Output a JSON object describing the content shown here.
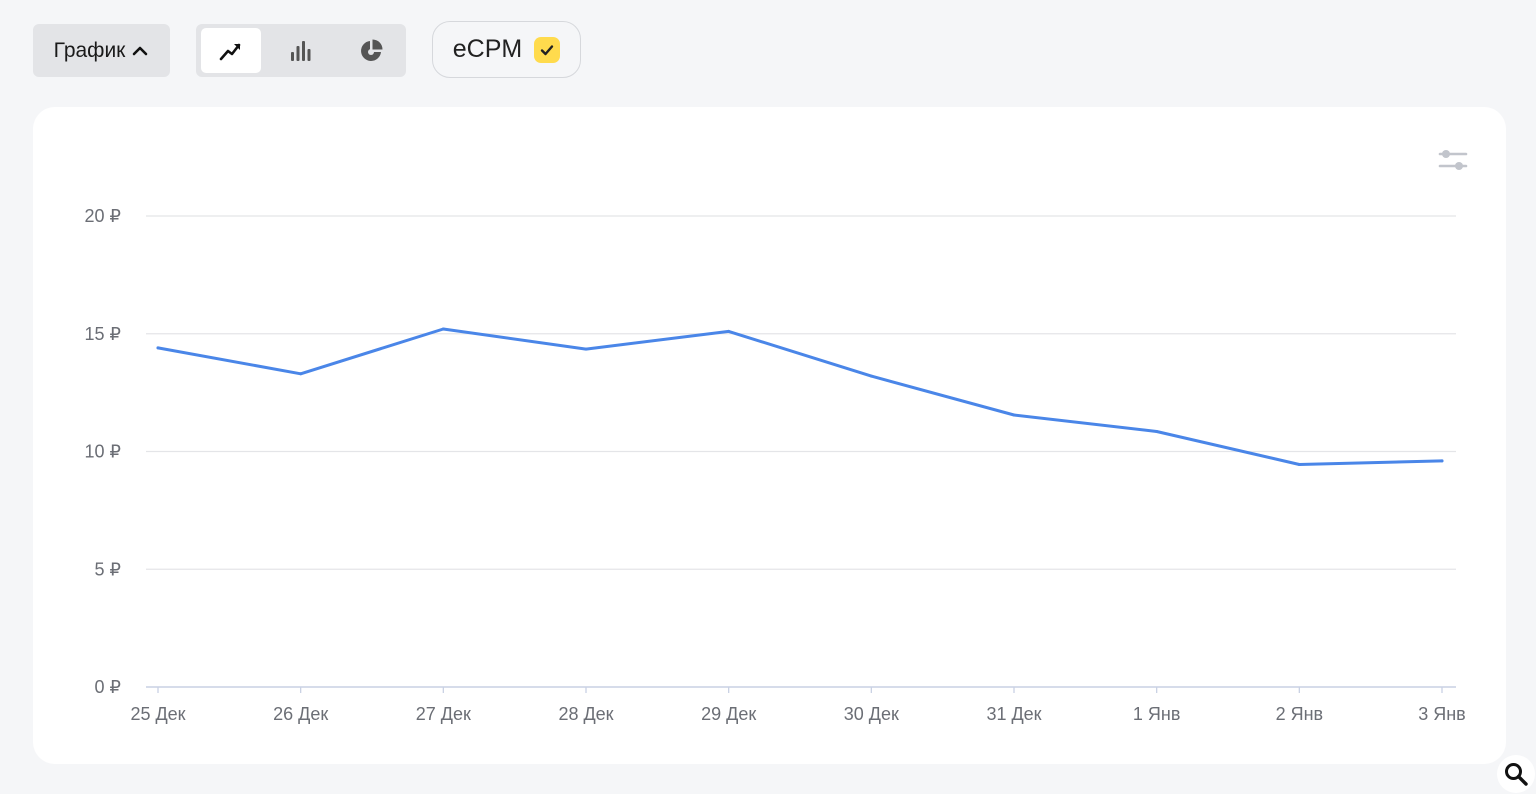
{
  "toolbar": {
    "toggle_label": "График",
    "chart_types": [
      {
        "name": "line",
        "icon": "line-chart-icon",
        "active": true
      },
      {
        "name": "bar",
        "icon": "bar-chart-icon",
        "active": false
      },
      {
        "name": "pie",
        "icon": "pie-chart-icon",
        "active": false
      }
    ],
    "metric_label": "eCPM",
    "metric_checked": true
  },
  "colors": {
    "line": "#4a86e8",
    "accent": "#ffdb4d",
    "grid": "#e4e5e8",
    "axis": "#c9d1e4"
  },
  "chart_data": {
    "type": "line",
    "title": "",
    "xlabel": "",
    "ylabel": "",
    "categories": [
      "25 Дек",
      "26 Дек",
      "27 Дек",
      "28 Дек",
      "29 Дек",
      "30 Дек",
      "31 Дек",
      "1 Янв",
      "2 Янв",
      "3 Янв"
    ],
    "series": [
      {
        "values": [
          14.4,
          13.3,
          15.2,
          14.35,
          15.1,
          13.2,
          11.55,
          10.85,
          9.45,
          9.6
        ]
      }
    ],
    "y_ticks": [
      "0 ₽",
      "5 ₽",
      "10 ₽",
      "15 ₽",
      "20 ₽"
    ],
    "ylim": [
      0,
      20
    ],
    "grid": true
  }
}
